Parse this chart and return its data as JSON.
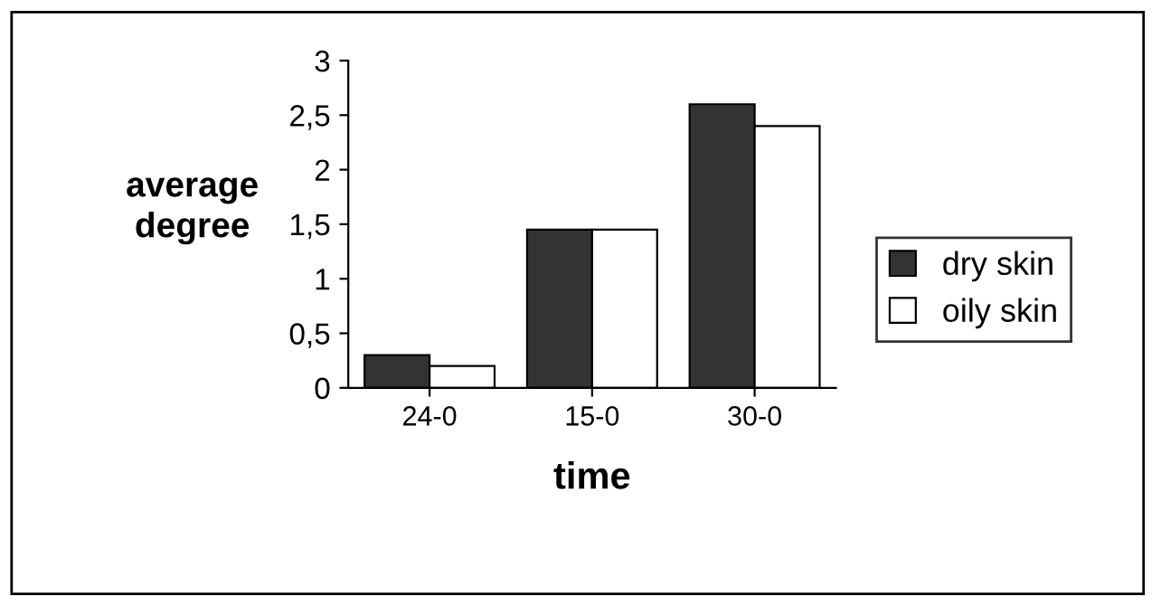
{
  "chart_data": {
    "type": "bar",
    "xlabel": "time",
    "ylabel": "average degree",
    "categories": [
      "24-0",
      "15-0",
      "30-0"
    ],
    "series": [
      {
        "name": "dry skin",
        "color": "#333333",
        "values": [
          0.3,
          1.45,
          2.6
        ]
      },
      {
        "name": "oily skin",
        "color": "#ffffff",
        "values": [
          0.2,
          1.45,
          2.4
        ]
      }
    ],
    "ylim": [
      0,
      3
    ],
    "yticks": [
      0,
      {
        "value": 0.5,
        "label": "0,5"
      },
      1,
      {
        "value": 1.5,
        "label": "1,5"
      },
      2,
      {
        "value": 2.5,
        "label": "2,5"
      },
      3
    ],
    "grid": false,
    "legend": "right"
  }
}
